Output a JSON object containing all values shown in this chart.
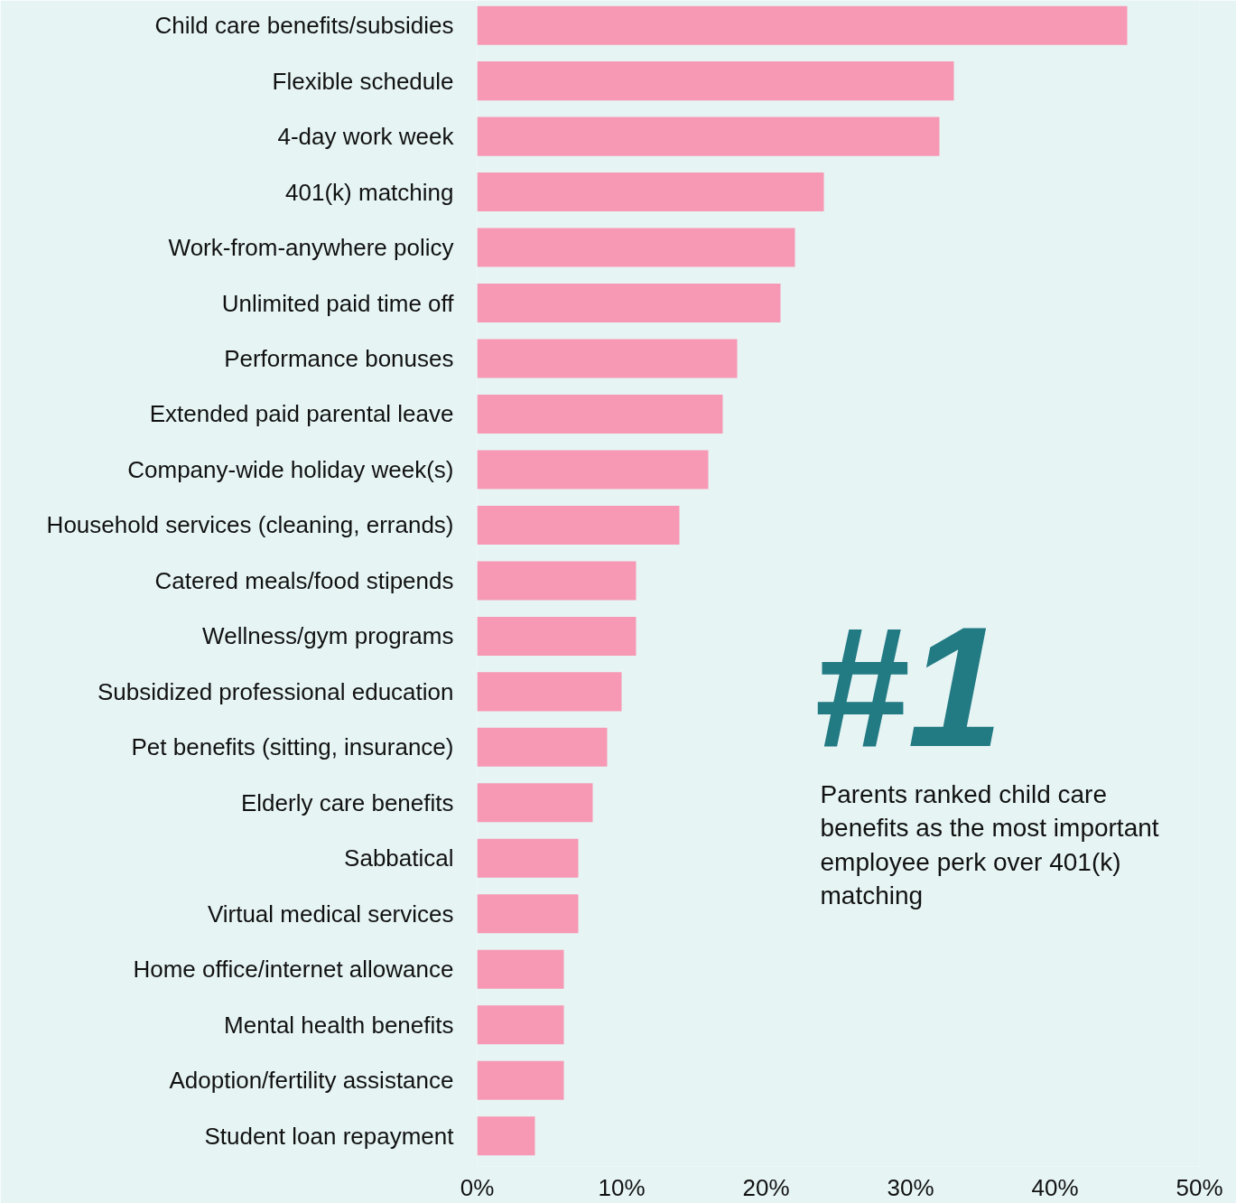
{
  "chart_data": {
    "type": "bar",
    "orientation": "horizontal",
    "categories": [
      "Child care benefits/subsidies",
      "Flexible schedule",
      "4-day work week",
      "401(k) matching",
      "Work-from-anywhere policy",
      "Unlimited paid time off",
      "Performance bonuses",
      "Extended paid parental leave",
      "Company-wide holiday week(s)",
      "Household services (cleaning, errands)",
      "Catered meals/food stipends",
      "Wellness/gym programs",
      "Subsidized professional education",
      "Pet benefits (sitting, insurance)",
      "Elderly care benefits",
      "Sabbatical",
      "Virtual medical services",
      "Home office/internet allowance",
      "Mental health benefits",
      "Adoption/fertility assistance",
      "Student loan repayment"
    ],
    "values": [
      45,
      33,
      32,
      24,
      22,
      21,
      18,
      17,
      16,
      14,
      11,
      11,
      10,
      9,
      8,
      7,
      7,
      6,
      6,
      6,
      4
    ],
    "color": "#f799b4",
    "xlim": [
      0,
      50
    ],
    "xticks": [
      {
        "value": 0,
        "label": "0%"
      },
      {
        "value": 10,
        "label": "10%"
      },
      {
        "value": 20,
        "label": "20%"
      },
      {
        "value": 30,
        "label": "30%"
      },
      {
        "value": 40,
        "label": "40%"
      },
      {
        "value": 50,
        "label": "50%"
      }
    ],
    "grid": false,
    "annotations": [
      "#1",
      "Parents ranked child care benefits as the most important employee perk over 401(k) matching"
    ]
  }
}
